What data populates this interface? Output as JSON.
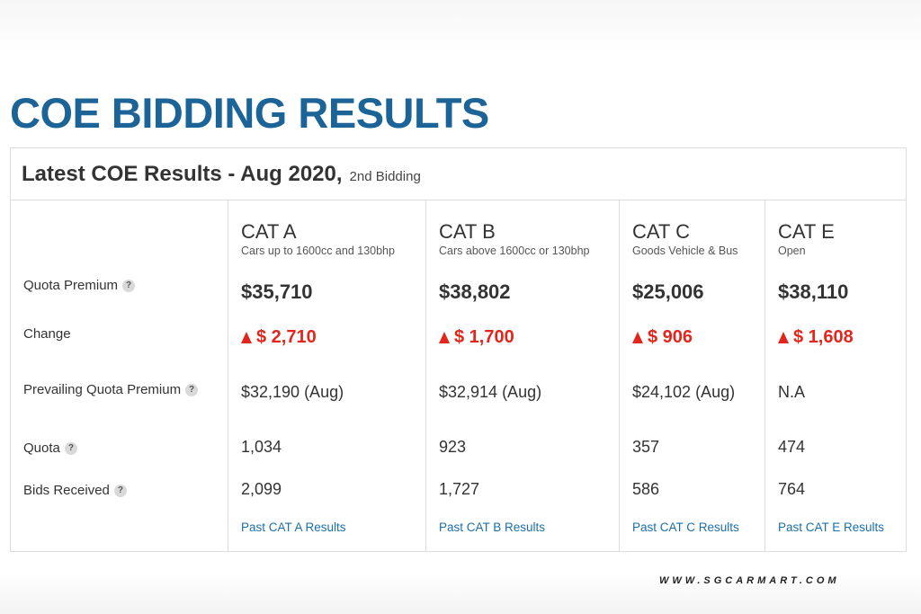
{
  "page_title": "COE BIDDING RESULTS",
  "card": {
    "heading": "Latest COE Results - Aug 2020,",
    "subheading": "2nd Bidding"
  },
  "row_labels": {
    "quota_premium": "Quota Premium",
    "change": "Change",
    "prevailing": "Prevailing Quota Premium",
    "quota": "Quota",
    "bids": "Bids Received"
  },
  "help_glyph": "?",
  "change_direction": "up",
  "categories": [
    {
      "name": "CAT A",
      "desc": "Cars up to 1600cc and 130bhp",
      "premium": "$35,710",
      "change": "$ 2,710",
      "prevailing": "$32,190 (Aug)",
      "quota": "1,034",
      "bids": "2,099",
      "link": "Past CAT A Results"
    },
    {
      "name": "CAT B",
      "desc": "Cars above 1600cc or 130bhp",
      "premium": "$38,802",
      "change": "$ 1,700",
      "prevailing": "$32,914 (Aug)",
      "quota": "923",
      "bids": "1,727",
      "link": "Past CAT B Results"
    },
    {
      "name": "CAT C",
      "desc": "Goods Vehicle & Bus",
      "premium": "$25,006",
      "change": "$ 906",
      "prevailing": "$24,102 (Aug)",
      "quota": "357",
      "bids": "586",
      "link": "Past CAT C Results"
    },
    {
      "name": "CAT E",
      "desc": "Open",
      "premium": "$38,110",
      "change": "$ 1,608",
      "prevailing": "N.A",
      "quota": "474",
      "bids": "764",
      "link": "Past CAT E Results"
    }
  ],
  "watermark": "WWW.SGCARMART.COM",
  "colors": {
    "title_blue": "#1c6497",
    "increase_red": "#e2261c",
    "link_blue": "#1b6fa8"
  }
}
